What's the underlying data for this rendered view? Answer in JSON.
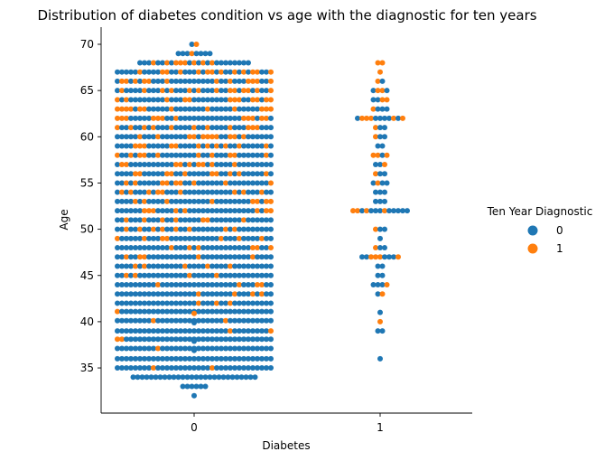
{
  "chart_data": {
    "type": "scatter",
    "subtype": "swarm",
    "title": "Distribution of diabetes condition vs age with the diagnostic for ten years",
    "xlabel": "Diabetes",
    "ylabel": "Age",
    "categories": [
      "0",
      "1"
    ],
    "ylim": [
      30,
      71.5
    ],
    "yticks": [
      35,
      40,
      45,
      50,
      55,
      60,
      65,
      70
    ],
    "grid": false,
    "legend": {
      "title": "Ten Year Diagnostic",
      "placement": "right",
      "entries": [
        {
          "label": "0",
          "color": "#1f77b4"
        },
        {
          "label": "1",
          "color": "#ff7f0e"
        }
      ]
    },
    "groups": [
      {
        "category": "0",
        "note": "Dense swarm of age counts with ten-year-diagnostic = 0 (blue) and = 1 (orange)",
        "age_counts": [
          {
            "age": 32,
            "n0": 1,
            "n1": 0
          },
          {
            "age": 33,
            "n0": 6,
            "n1": 0
          },
          {
            "age": 34,
            "n0": 28,
            "n1": 0
          },
          {
            "age": 35,
            "n0": 33,
            "n1": 2
          },
          {
            "age": 36,
            "n0": 35,
            "n1": 0
          },
          {
            "age": 37,
            "n0": 35,
            "n1": 1
          },
          {
            "age": 38,
            "n0": 34,
            "n1": 2
          },
          {
            "age": 39,
            "n0": 33,
            "n1": 2
          },
          {
            "age": 40,
            "n0": 34,
            "n1": 2
          },
          {
            "age": 41,
            "n0": 34,
            "n1": 2
          },
          {
            "age": 42,
            "n0": 32,
            "n1": 3
          },
          {
            "age": 43,
            "n0": 31,
            "n1": 4
          },
          {
            "age": 44,
            "n0": 31,
            "n1": 4
          },
          {
            "age": 45,
            "n0": 31,
            "n1": 4
          },
          {
            "age": 46,
            "n0": 30,
            "n1": 5
          },
          {
            "age": 47,
            "n0": 30,
            "n1": 5
          },
          {
            "age": 48,
            "n0": 29,
            "n1": 6
          },
          {
            "age": 49,
            "n0": 28,
            "n1": 7
          },
          {
            "age": 50,
            "n0": 27,
            "n1": 8
          },
          {
            "age": 51,
            "n0": 28,
            "n1": 7
          },
          {
            "age": 52,
            "n0": 27,
            "n1": 8
          },
          {
            "age": 53,
            "n0": 27,
            "n1": 8
          },
          {
            "age": 54,
            "n0": 26,
            "n1": 9
          },
          {
            "age": 55,
            "n0": 26,
            "n1": 9
          },
          {
            "age": 56,
            "n0": 25,
            "n1": 10
          },
          {
            "age": 57,
            "n0": 26,
            "n1": 9
          },
          {
            "age": 58,
            "n0": 25,
            "n1": 10
          },
          {
            "age": 59,
            "n0": 24,
            "n1": 11
          },
          {
            "age": 60,
            "n0": 24,
            "n1": 11
          },
          {
            "age": 61,
            "n0": 24,
            "n1": 11
          },
          {
            "age": 62,
            "n0": 23,
            "n1": 12
          },
          {
            "age": 63,
            "n0": 23,
            "n1": 12
          },
          {
            "age": 64,
            "n0": 23,
            "n1": 12
          },
          {
            "age": 65,
            "n0": 22,
            "n1": 13
          },
          {
            "age": 66,
            "n0": 23,
            "n1": 12
          },
          {
            "age": 67,
            "n0": 22,
            "n1": 13
          },
          {
            "age": 68,
            "n0": 17,
            "n1": 8
          },
          {
            "age": 69,
            "n0": 7,
            "n1": 1
          },
          {
            "age": 70,
            "n0": 1,
            "n1": 1
          }
        ]
      },
      {
        "category": "1",
        "age_counts": [
          {
            "age": 36,
            "n0": 1,
            "n1": 0
          },
          {
            "age": 39,
            "n0": 2,
            "n1": 0
          },
          {
            "age": 40,
            "n0": 0,
            "n1": 1
          },
          {
            "age": 41,
            "n0": 1,
            "n1": 0
          },
          {
            "age": 43,
            "n0": 1,
            "n1": 1
          },
          {
            "age": 44,
            "n0": 3,
            "n1": 1
          },
          {
            "age": 45,
            "n0": 2,
            "n1": 0
          },
          {
            "age": 46,
            "n0": 2,
            "n1": 0
          },
          {
            "age": 47,
            "n0": 5,
            "n1": 4
          },
          {
            "age": 48,
            "n0": 2,
            "n1": 1
          },
          {
            "age": 49,
            "n0": 1,
            "n1": 0
          },
          {
            "age": 50,
            "n0": 2,
            "n1": 1
          },
          {
            "age": 52,
            "n0": 9,
            "n1": 4
          },
          {
            "age": 53,
            "n0": 3,
            "n1": 0
          },
          {
            "age": 54,
            "n0": 3,
            "n1": 0
          },
          {
            "age": 55,
            "n0": 3,
            "n1": 1
          },
          {
            "age": 56,
            "n0": 2,
            "n1": 1
          },
          {
            "age": 57,
            "n0": 2,
            "n1": 1
          },
          {
            "age": 58,
            "n0": 1,
            "n1": 3
          },
          {
            "age": 59,
            "n0": 2,
            "n1": 0
          },
          {
            "age": 60,
            "n0": 2,
            "n1": 1
          },
          {
            "age": 61,
            "n0": 2,
            "n1": 1
          },
          {
            "age": 62,
            "n0": 6,
            "n1": 5
          },
          {
            "age": 63,
            "n0": 3,
            "n1": 1
          },
          {
            "age": 64,
            "n0": 2,
            "n1": 2
          },
          {
            "age": 65,
            "n0": 2,
            "n1": 2
          },
          {
            "age": 66,
            "n0": 1,
            "n1": 1
          },
          {
            "age": 67,
            "n0": 0,
            "n1": 1
          },
          {
            "age": 68,
            "n0": 0,
            "n1": 2
          }
        ]
      }
    ]
  }
}
